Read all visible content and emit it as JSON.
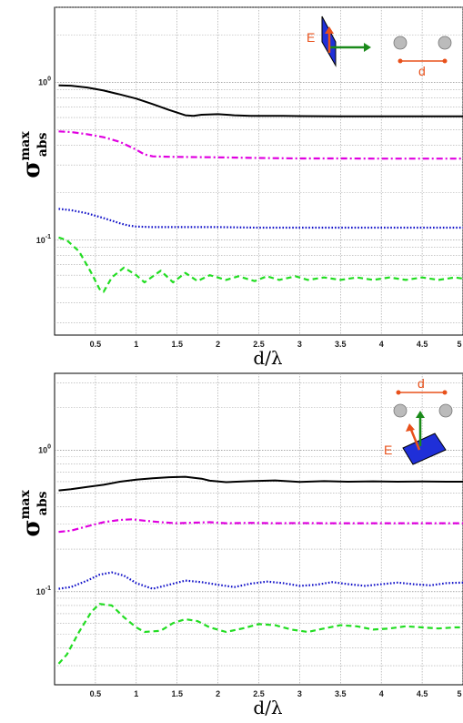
{
  "chart_data": [
    {
      "type": "line",
      "xlabel": "d/λ",
      "ylabel": "σ",
      "ylabel_sup": "max",
      "ylabel_sub": "abs",
      "xlim": [
        0,
        5
      ],
      "ylim": [
        0.025,
        3
      ],
      "yscale": "log",
      "grid": true,
      "xticks": [
        0.5,
        1,
        1.5,
        2,
        2.5,
        3,
        3.5,
        4,
        4.5,
        5
      ],
      "xtick_labels": [
        "0.5",
        "1",
        "1.5",
        "2",
        "2.5",
        "3",
        "3.5",
        "4",
        "4.5",
        "5"
      ],
      "ytick_labels": [
        {
          "base": "10",
          "exp": "0"
        },
        {
          "base": "10",
          "exp": "-1"
        }
      ],
      "inset": {
        "field_label": "E",
        "distance_label": "d",
        "orientation": "field perpendicular to dimer axis"
      },
      "series": [
        {
          "color": "#000000",
          "style": "solid",
          "x": [
            0.05,
            0.2,
            0.4,
            0.6,
            0.8,
            1.0,
            1.2,
            1.4,
            1.6,
            1.7,
            1.8,
            2.0,
            2.2,
            2.4,
            2.6,
            2.8,
            3.0,
            3.5,
            4.0,
            4.5,
            5.0
          ],
          "y": [
            0.96,
            0.955,
            0.93,
            0.89,
            0.84,
            0.79,
            0.73,
            0.67,
            0.62,
            0.615,
            0.625,
            0.63,
            0.62,
            0.615,
            0.615,
            0.615,
            0.612,
            0.61,
            0.61,
            0.61,
            0.61
          ]
        },
        {
          "color": "#e000e0",
          "style": "dashdot",
          "x": [
            0.05,
            0.2,
            0.4,
            0.6,
            0.8,
            1.0,
            1.1,
            1.2,
            1.4,
            1.6,
            1.8,
            2.0,
            2.5,
            3.0,
            3.5,
            4.0,
            4.5,
            5.0
          ],
          "y": [
            0.49,
            0.485,
            0.47,
            0.45,
            0.42,
            0.375,
            0.35,
            0.34,
            0.338,
            0.337,
            0.336,
            0.335,
            0.332,
            0.33,
            0.33,
            0.329,
            0.329,
            0.329
          ]
        },
        {
          "color": "#1010c8",
          "style": "dotted",
          "x": [
            0.05,
            0.2,
            0.4,
            0.6,
            0.8,
            0.9,
            1.0,
            1.2,
            1.5,
            2.0,
            2.5,
            3.0,
            3.5,
            4.0,
            4.5,
            5.0
          ],
          "y": [
            0.158,
            0.155,
            0.148,
            0.138,
            0.128,
            0.124,
            0.122,
            0.121,
            0.121,
            0.121,
            0.12,
            0.12,
            0.12,
            0.12,
            0.12,
            0.12
          ]
        },
        {
          "color": "#22dd22",
          "style": "dashed",
          "x": [
            0.05,
            0.15,
            0.3,
            0.45,
            0.55,
            0.6,
            0.7,
            0.85,
            1.0,
            1.1,
            1.3,
            1.45,
            1.6,
            1.75,
            1.9,
            2.1,
            2.25,
            2.45,
            2.6,
            2.75,
            2.95,
            3.1,
            3.3,
            3.5,
            3.7,
            3.9,
            4.1,
            4.3,
            4.5,
            4.7,
            4.9,
            5.0
          ],
          "y": [
            0.104,
            0.1,
            0.085,
            0.062,
            0.049,
            0.047,
            0.058,
            0.067,
            0.06,
            0.054,
            0.064,
            0.054,
            0.062,
            0.055,
            0.06,
            0.056,
            0.059,
            0.055,
            0.059,
            0.056,
            0.059,
            0.056,
            0.058,
            0.056,
            0.058,
            0.056,
            0.058,
            0.056,
            0.058,
            0.056,
            0.058,
            0.057
          ]
        }
      ]
    },
    {
      "type": "line",
      "xlabel": "d/λ",
      "ylabel": "σ",
      "ylabel_sup": "max",
      "ylabel_sub": "abs",
      "xlim": [
        0,
        5
      ],
      "ylim": [
        0.022,
        3.5
      ],
      "yscale": "log",
      "grid": true,
      "xticks": [
        0.5,
        1,
        1.5,
        2,
        2.5,
        3,
        3.5,
        4,
        4.5,
        5
      ],
      "xtick_labels": [
        "0.5",
        "1",
        "1.5",
        "2",
        "2.5",
        "3",
        "3.5",
        "4",
        "4.5",
        "5"
      ],
      "ytick_labels": [
        {
          "base": "10",
          "exp": "0"
        },
        {
          "base": "10",
          "exp": "-1"
        }
      ],
      "inset": {
        "field_label": "E",
        "distance_label": "d",
        "orientation": "field parallel to dimer axis"
      },
      "series": [
        {
          "color": "#000000",
          "style": "solid",
          "x": [
            0.05,
            0.2,
            0.4,
            0.6,
            0.8,
            1.0,
            1.2,
            1.4,
            1.6,
            1.8,
            1.9,
            2.1,
            2.4,
            2.7,
            3.0,
            3.3,
            3.6,
            3.9,
            4.2,
            4.5,
            4.8,
            5.0
          ],
          "y": [
            0.52,
            0.53,
            0.55,
            0.57,
            0.6,
            0.62,
            0.635,
            0.645,
            0.65,
            0.63,
            0.61,
            0.595,
            0.605,
            0.612,
            0.598,
            0.605,
            0.6,
            0.603,
            0.6,
            0.602,
            0.6,
            0.6
          ]
        },
        {
          "color": "#e000e0",
          "style": "dashdot",
          "x": [
            0.05,
            0.2,
            0.4,
            0.6,
            0.8,
            0.95,
            1.1,
            1.3,
            1.5,
            1.7,
            1.9,
            2.1,
            2.4,
            2.7,
            3.0,
            3.3,
            3.6,
            3.9,
            4.2,
            4.5,
            4.8,
            5.0
          ],
          "y": [
            0.265,
            0.27,
            0.29,
            0.31,
            0.322,
            0.325,
            0.318,
            0.31,
            0.305,
            0.308,
            0.31,
            0.305,
            0.307,
            0.305,
            0.306,
            0.305,
            0.305,
            0.305,
            0.305,
            0.305,
            0.305,
            0.305
          ]
        },
        {
          "color": "#1010c8",
          "style": "dotted",
          "x": [
            0.05,
            0.2,
            0.4,
            0.55,
            0.7,
            0.85,
            1.0,
            1.2,
            1.4,
            1.6,
            1.8,
            2.0,
            2.2,
            2.4,
            2.6,
            2.8,
            3.0,
            3.2,
            3.4,
            3.6,
            3.8,
            4.0,
            4.2,
            4.4,
            4.6,
            4.8,
            5.0
          ],
          "y": [
            0.105,
            0.108,
            0.12,
            0.132,
            0.137,
            0.13,
            0.115,
            0.105,
            0.112,
            0.12,
            0.117,
            0.112,
            0.108,
            0.114,
            0.118,
            0.115,
            0.11,
            0.112,
            0.117,
            0.113,
            0.11,
            0.113,
            0.116,
            0.113,
            0.111,
            0.115,
            0.116
          ]
        },
        {
          "color": "#22dd22",
          "style": "dashed",
          "x": [
            0.05,
            0.15,
            0.3,
            0.45,
            0.55,
            0.7,
            0.85,
            1.0,
            1.1,
            1.3,
            1.45,
            1.6,
            1.75,
            1.9,
            2.1,
            2.3,
            2.5,
            2.7,
            2.9,
            3.1,
            3.3,
            3.5,
            3.7,
            3.9,
            4.1,
            4.3,
            4.5,
            4.7,
            4.9,
            5.0
          ],
          "y": [
            0.031,
            0.036,
            0.052,
            0.072,
            0.082,
            0.08,
            0.066,
            0.056,
            0.052,
            0.053,
            0.06,
            0.064,
            0.062,
            0.056,
            0.052,
            0.055,
            0.059,
            0.058,
            0.054,
            0.052,
            0.055,
            0.058,
            0.057,
            0.054,
            0.055,
            0.057,
            0.056,
            0.055,
            0.056,
            0.056
          ]
        }
      ]
    }
  ]
}
